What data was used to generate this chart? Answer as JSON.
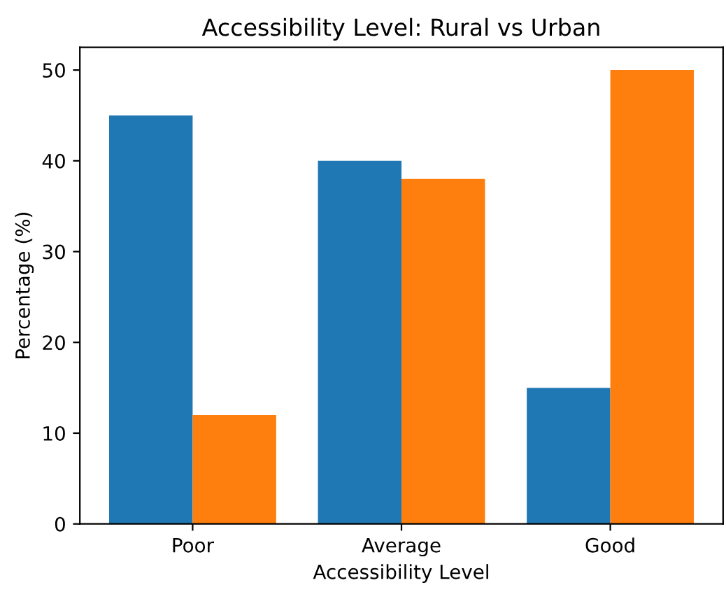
{
  "chart_data": {
    "type": "bar",
    "title": "Accessibility Level: Rural vs Urban",
    "xlabel": "Accessibility Level",
    "ylabel": "Percentage (%)",
    "categories": [
      "Poor",
      "Average",
      "Good"
    ],
    "series": [
      {
        "color": "#1f77b4",
        "values": [
          45,
          40,
          15
        ]
      },
      {
        "color": "#ff7f0e",
        "values": [
          12,
          38,
          50
        ]
      }
    ],
    "ylim": [
      0,
      52.5
    ],
    "yticks": [
      0,
      10,
      20,
      30,
      40,
      50
    ],
    "grid": false,
    "legend": false
  }
}
